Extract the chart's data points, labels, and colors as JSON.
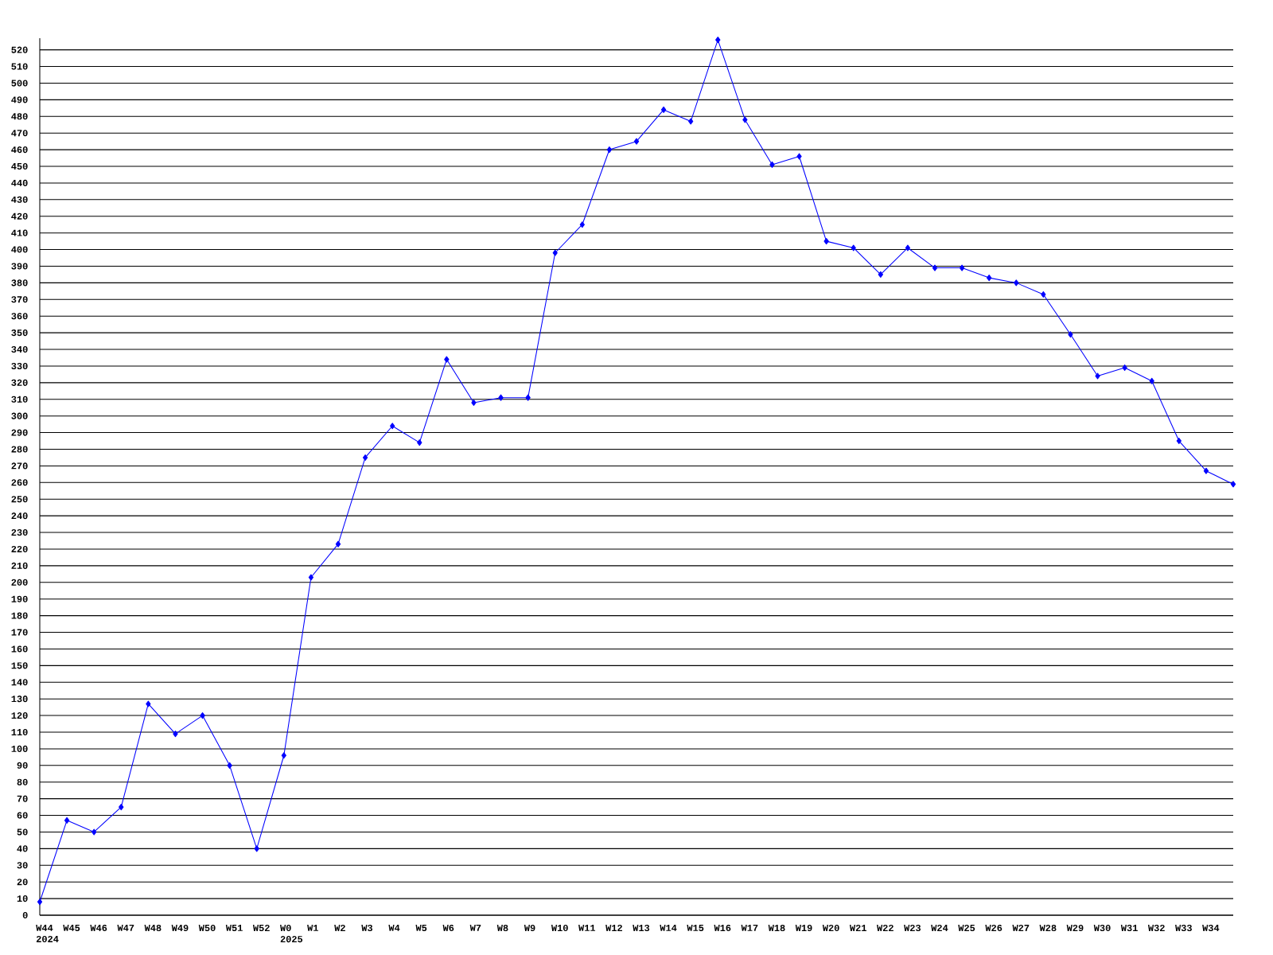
{
  "chart_data": {
    "type": "line",
    "categories": [
      "W44 2024",
      "W45",
      "W46",
      "W47",
      "W48",
      "W49",
      "W50",
      "W51",
      "W52",
      "W0 2025",
      "W1",
      "W2",
      "W3",
      "W4",
      "W5",
      "W6",
      "W7",
      "W8",
      "W9",
      "W10",
      "W11",
      "W12",
      "W13",
      "W14",
      "W15",
      "W16",
      "W17",
      "W18",
      "W19",
      "W20",
      "W21",
      "W22",
      "W23",
      "W24",
      "W25",
      "W26",
      "W27",
      "W28",
      "W29",
      "W30",
      "W31",
      "W32",
      "W33",
      "W34",
      null
    ],
    "values": [
      8,
      57,
      50,
      65,
      127,
      109,
      120,
      90,
      40,
      96,
      203,
      223,
      275,
      294,
      284,
      334,
      308,
      311,
      311,
      398,
      415,
      460,
      465,
      484,
      477,
      526,
      478,
      451,
      456,
      405,
      401,
      385,
      401,
      389,
      389,
      383,
      380,
      373,
      349,
      324,
      329,
      321,
      285,
      267,
      259
    ],
    "color": "#0000ff",
    "marker": "diamond",
    "line_style": "solid",
    "grid": "y",
    "ylim": [
      0,
      527
    ],
    "yticks": [
      0,
      10,
      20,
      30,
      40,
      50,
      60,
      70,
      80,
      90,
      100,
      110,
      120,
      130,
      140,
      150,
      160,
      170,
      180,
      190,
      200,
      210,
      220,
      230,
      240,
      250,
      260,
      270,
      280,
      290,
      300,
      310,
      320,
      330,
      340,
      350,
      360,
      370,
      380,
      390,
      400,
      410,
      420,
      430,
      440,
      450,
      460,
      470,
      480,
      490,
      500,
      510,
      520
    ]
  }
}
